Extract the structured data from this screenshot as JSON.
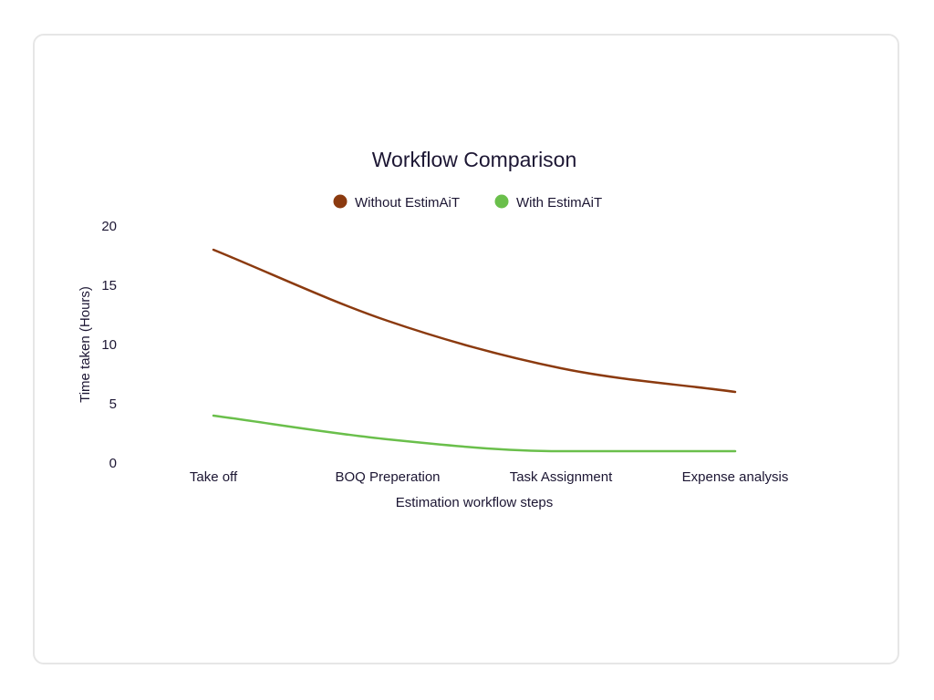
{
  "chart_data": {
    "type": "line",
    "title": "Workflow Comparison",
    "xlabel": "Estimation workflow steps",
    "ylabel": "Time taken (Hours)",
    "categories": [
      "Take off",
      "BOQ Preperation",
      "Task Assignment",
      "Expense analysis"
    ],
    "yticks": [
      "0",
      "5",
      "10",
      "15",
      "20"
    ],
    "ylim": [
      0,
      20
    ],
    "grid": false,
    "smooth": true,
    "legend_position": "top-center",
    "series": [
      {
        "name": "Without EstimAiT",
        "color": "#8b3a0f",
        "values": [
          18,
          12,
          8,
          6
        ]
      },
      {
        "name": "With EstimAiT",
        "color": "#6abf4b",
        "values": [
          4,
          2,
          1,
          1
        ]
      }
    ]
  }
}
